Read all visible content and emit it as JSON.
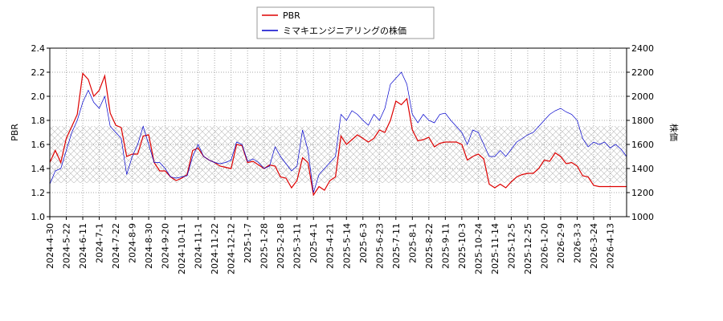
{
  "chart_data": {
    "type": "line",
    "y_label": "PBR",
    "y2_label": "株価",
    "legend": "upper center",
    "grid": true,
    "categories": [
      "2024-4-30",
      null,
      null,
      "2024-5-22",
      null,
      null,
      "2024-6-11",
      null,
      null,
      "2024-7-1",
      null,
      null,
      "2024-7-22",
      null,
      null,
      "2024-8-9",
      null,
      null,
      "2024-8-30",
      null,
      null,
      "2024-9-20",
      null,
      null,
      "2024-10-11",
      null,
      null,
      "2024-11-1",
      null,
      null,
      "2024-11-22",
      null,
      null,
      "2024-12-12",
      null,
      null,
      "2025-1-7",
      null,
      null,
      "2025-1-28",
      null,
      null,
      "2025-2-18",
      null,
      null,
      "2025-3-11",
      null,
      null,
      "2025-4-1",
      null,
      null,
      "2025-4-21",
      null,
      null,
      "2025-5-14",
      null,
      null,
      "2025-6-3",
      null,
      null,
      "2025-6-23",
      null,
      null,
      "2025-7-11",
      null,
      null,
      "2025-8-1",
      null,
      null,
      "2025-8-22",
      null,
      null,
      "2025-9-11",
      null,
      null,
      "2025-10-3",
      null,
      null,
      "2025-10-24",
      null,
      null,
      "2025-11-14",
      null,
      null,
      "2025-12-5",
      null,
      null,
      "2025-12-25",
      null,
      null,
      "2026-1-20",
      null,
      null,
      "2026-2-9",
      null,
      null,
      "2026-3-3",
      null,
      null,
      "2026-3-24",
      null,
      null,
      "2026-4-13",
      null,
      null,
      null
    ],
    "series": [
      {
        "name": "PBR",
        "color": "#dd0000",
        "axis": "y",
        "values": [
          1.45,
          1.55,
          1.45,
          1.65,
          1.75,
          1.85,
          2.19,
          2.14,
          2.0,
          2.05,
          2.17,
          1.86,
          1.76,
          1.74,
          1.5,
          1.52,
          1.52,
          1.67,
          1.68,
          1.45,
          1.38,
          1.38,
          1.33,
          1.3,
          1.32,
          1.35,
          1.55,
          1.57,
          1.5,
          1.47,
          1.45,
          1.42,
          1.41,
          1.4,
          1.6,
          1.59,
          1.45,
          1.46,
          1.43,
          1.4,
          1.43,
          1.42,
          1.33,
          1.32,
          1.24,
          1.3,
          1.49,
          1.45,
          1.18,
          1.25,
          1.22,
          1.3,
          1.33,
          1.67,
          1.6,
          1.64,
          1.68,
          1.65,
          1.62,
          1.65,
          1.72,
          1.7,
          1.8,
          1.96,
          1.93,
          1.98,
          1.72,
          1.63,
          1.64,
          1.66,
          1.58,
          1.61,
          1.62,
          1.62,
          1.62,
          1.6,
          1.47,
          1.5,
          1.52,
          1.48,
          1.27,
          1.24,
          1.27,
          1.24,
          1.29,
          1.33,
          1.35,
          1.36,
          1.36,
          1.4,
          1.47,
          1.46,
          1.53,
          1.5,
          1.44,
          1.45,
          1.42,
          1.34,
          1.33,
          1.26,
          1.25,
          1.25,
          1.25,
          1.25,
          1.25,
          1.25
        ]
      },
      {
        "name": "ミマキエンジニアリングの株価",
        "color": "#0000cc",
        "axis": "y2",
        "values": [
          1270,
          1380,
          1400,
          1550,
          1700,
          1800,
          1950,
          2050,
          1950,
          1900,
          2000,
          1750,
          1700,
          1650,
          1350,
          1500,
          1600,
          1750,
          1600,
          1450,
          1450,
          1400,
          1330,
          1320,
          1330,
          1340,
          1500,
          1600,
          1500,
          1470,
          1450,
          1440,
          1450,
          1470,
          1620,
          1600,
          1460,
          1480,
          1450,
          1400,
          1420,
          1580,
          1500,
          1440,
          1380,
          1420,
          1720,
          1550,
          1200,
          1350,
          1400,
          1450,
          1500,
          1850,
          1800,
          1880,
          1850,
          1800,
          1760,
          1850,
          1800,
          1900,
          2100,
          2150,
          2200,
          2100,
          1850,
          1780,
          1850,
          1800,
          1780,
          1850,
          1860,
          1800,
          1750,
          1700,
          1600,
          1720,
          1700,
          1600,
          1500,
          1500,
          1550,
          1500,
          1560,
          1620,
          1650,
          1680,
          1700,
          1750,
          1800,
          1850,
          1880,
          1900,
          1870,
          1850,
          1800,
          1650,
          1580,
          1620,
          1600,
          1620,
          1570,
          1600,
          1560,
          1500
        ]
      }
    ],
    "ylim": [
      1,
      2.4
    ],
    "yticks": [
      {
        "value": 1,
        "label": "1.0"
      },
      1.2,
      1.4,
      1.6,
      1.8,
      {
        "value": 2,
        "label": "2.0"
      },
      2.2,
      2.4
    ],
    "y2lim": [
      1000,
      2400
    ],
    "y2ticks": [
      1000,
      1200,
      1400,
      1600,
      1800,
      2000,
      2200,
      2400
    ]
  }
}
